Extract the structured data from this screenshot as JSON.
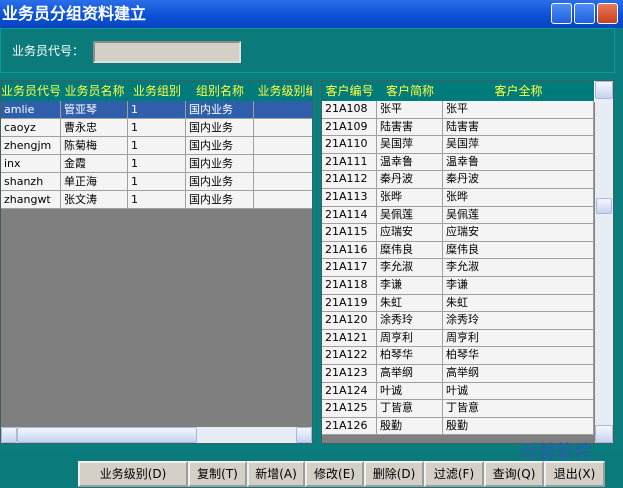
{
  "header": {
    "title": "业务员分组资料建立"
  },
  "form": {
    "label": "业务员代号："
  },
  "left_grid": {
    "columns": [
      "业务员代号",
      "业务员名称",
      "业务组别",
      "组别名称",
      "业务级别编"
    ],
    "rows": [
      [
        "amlie",
        "管亚琴",
        "1",
        "国内业务",
        ""
      ],
      [
        "caoyz",
        "曹永忠",
        "1",
        "国内业务",
        ""
      ],
      [
        "zhengjm",
        "陈菊梅",
        "1",
        "国内业务",
        ""
      ],
      [
        "inx",
        "金霞",
        "1",
        "国内业务",
        ""
      ],
      [
        "shanzh",
        "单正海",
        "1",
        "国内业务",
        ""
      ],
      [
        "zhangwt",
        "张文涛",
        "1",
        "国内业务",
        ""
      ]
    ]
  },
  "right_grid": {
    "columns": [
      "客户编号",
      "客户简称",
      "客户全称"
    ],
    "rows": [
      [
        "21A108",
        "张平",
        "张平"
      ],
      [
        "21A109",
        "陆害害",
        "陆害害"
      ],
      [
        "21A110",
        "吴国萍",
        "吴国萍"
      ],
      [
        "21A111",
        "温幸鲁",
        "温幸鲁"
      ],
      [
        "21A112",
        "秦丹波",
        "秦丹波"
      ],
      [
        "21A113",
        "张晔",
        "张晔"
      ],
      [
        "21A114",
        "吴佩莲",
        "吴佩莲"
      ],
      [
        "21A115",
        "应瑞安",
        "应瑞安"
      ],
      [
        "21A116",
        "糜伟良",
        "糜伟良"
      ],
      [
        "21A117",
        "李允淑",
        "李允淑"
      ],
      [
        "21A118",
        "李谦",
        "李谦"
      ],
      [
        "21A119",
        "朱虹",
        "朱虹"
      ],
      [
        "21A120",
        "涂秀玲",
        "涂秀玲"
      ],
      [
        "21A121",
        "周亨利",
        "周亨利"
      ],
      [
        "21A122",
        "柏琴华",
        "柏琴华"
      ],
      [
        "21A123",
        "高举纲",
        "高举纲"
      ],
      [
        "21A124",
        "叶诚",
        "叶诚"
      ],
      [
        "21A125",
        "丁皆意",
        "丁皆意"
      ],
      [
        "21A126",
        "殷勤",
        "殷勤"
      ]
    ]
  },
  "buttons": [
    "业务级别(D)",
    "复制(T)",
    "新增(A)",
    "修改(E)",
    "删除(D)",
    "过滤(F)",
    "查询(Q)",
    "退出(X)"
  ],
  "watermark": "泛普软件"
}
